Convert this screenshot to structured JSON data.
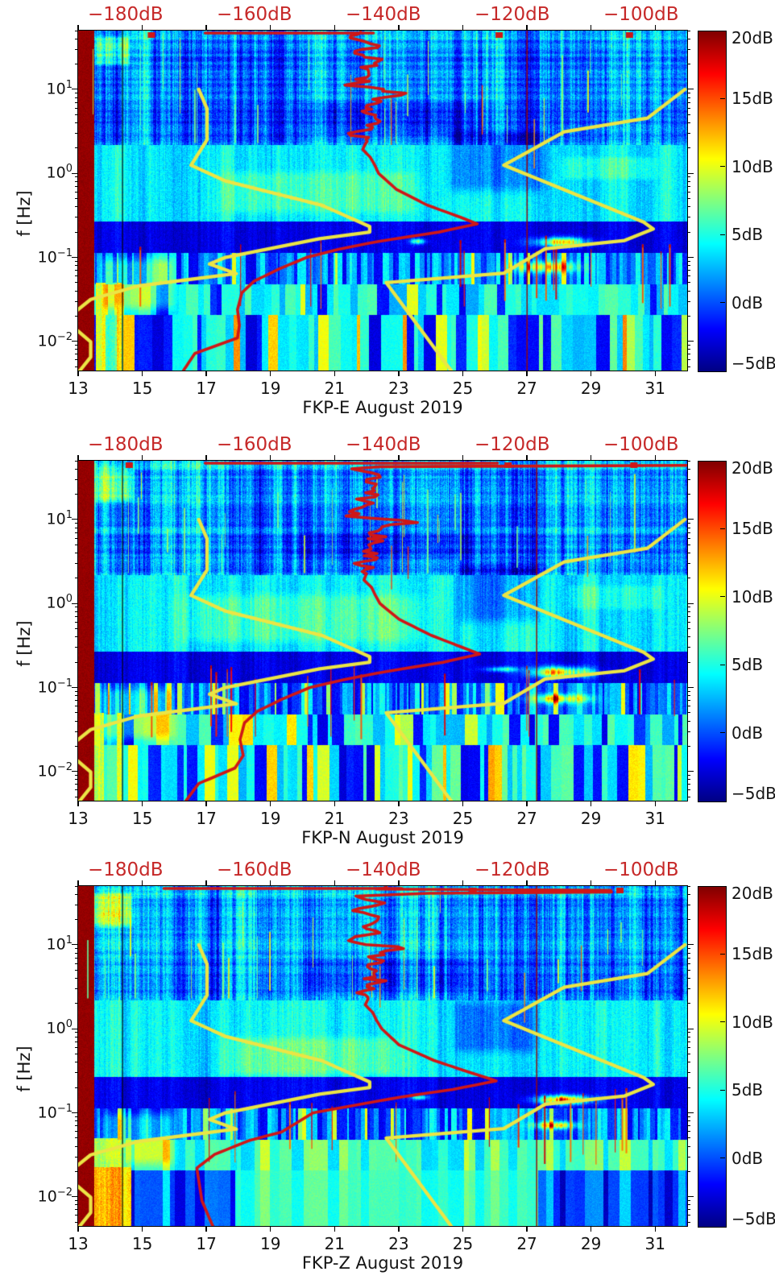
{
  "chart_data": {
    "type": "heatmap",
    "layout": "three stacked spectrogram panels (seismic power relative to noise model), jet colormap, with Peterson noise-model and median PSD overlay curves",
    "x_axis": {
      "ticks": [
        13,
        15,
        17,
        19,
        21,
        23,
        25,
        27,
        29,
        31
      ],
      "range_days": [
        13,
        32
      ]
    },
    "y_axis": {
      "label": "f [Hz]",
      "scale": "log",
      "range_hz": [
        0.0045,
        50
      ],
      "tick_exponents": [
        1,
        0,
        -1,
        -2
      ]
    },
    "top_axis": {
      "labels": [
        "-180dB",
        "-160dB",
        "-140dB",
        "-120dB",
        "-100dB"
      ],
      "values": [
        -180,
        -160,
        -140,
        -120,
        -100
      ],
      "color": "#c62828",
      "unit": "dB PSD scale for overlay curves"
    },
    "colorbar": {
      "labels": [
        "20dB",
        "15dB",
        "10dB",
        "5dB",
        "0dB",
        "-5dB"
      ],
      "values": [
        20,
        15,
        10,
        5,
        0,
        -5
      ],
      "range": [
        -5,
        20
      ],
      "colormap": "jet"
    },
    "noise_models": {
      "color": "#ebe545",
      "nlnm_freq_db": [
        [
          10,
          -168.0
        ],
        [
          5.882,
          -166.7
        ],
        [
          2.5,
          -166.7
        ],
        [
          1.25,
          -169.2
        ],
        [
          0.8065,
          -163.7
        ],
        [
          0.4167,
          -148.6
        ],
        [
          0.2326,
          -141.1
        ],
        [
          0.2,
          -141.1
        ],
        [
          0.1667,
          -149.0
        ],
        [
          0.1,
          -163.8
        ],
        [
          0.0833,
          -166.3
        ],
        [
          0.0641,
          -162.1
        ],
        [
          0.0457,
          -177.5
        ],
        [
          0.0316,
          -185.0
        ],
        [
          0.0222,
          -187.5
        ],
        [
          0.0143,
          -187.5
        ],
        [
          0.0099,
          -185.0
        ],
        [
          0.0065,
          -185.0
        ],
        [
          0.0045,
          -186.7
        ]
      ],
      "nhnm_freq_db": [
        [
          10,
          -91.5
        ],
        [
          4.545,
          -97.4
        ],
        [
          3.125,
          -110.5
        ],
        [
          1.25,
          -120.0
        ],
        [
          0.2632,
          -98.0
        ],
        [
          0.2174,
          -96.5
        ],
        [
          0.1587,
          -101.0
        ],
        [
          0.1266,
          -113.5
        ],
        [
          0.0649,
          -120.0
        ],
        [
          0.05,
          -138.5
        ],
        [
          0.0045,
          -128.3
        ]
      ]
    },
    "median_color": "#cf1717",
    "panels": [
      {
        "id": "FKP-E",
        "xlabel": "FKP-E August 2019",
        "median_freq_db": [
          [
            48,
            -142
          ],
          [
            39,
            -143.2
          ],
          [
            33,
            -140.3
          ],
          [
            27,
            -142.9
          ],
          [
            21.5,
            -139.7
          ],
          [
            17.3,
            -142.2
          ],
          [
            13.9,
            -141
          ],
          [
            11.2,
            -143.8
          ],
          [
            9,
            -135.3
          ],
          [
            7.2,
            -141
          ],
          [
            5.8,
            -139.7
          ],
          [
            4.65,
            -142.2
          ],
          [
            3.73,
            -140.3
          ],
          [
            3,
            -142.2
          ],
          [
            2.4,
            -141.6
          ],
          [
            1.93,
            -142.2
          ],
          [
            1.55,
            -141
          ],
          [
            1.25,
            -140.3
          ],
          [
            1,
            -139.7
          ],
          [
            0.645,
            -136.9
          ],
          [
            0.42,
            -132.1
          ],
          [
            0.3,
            -126.8
          ],
          [
            0.25,
            -124.2
          ],
          [
            0.2,
            -130.2
          ],
          [
            0.155,
            -139.7
          ],
          [
            0.125,
            -146
          ],
          [
            0.1,
            -151
          ],
          [
            0.072,
            -155.5
          ],
          [
            0.052,
            -159.3
          ],
          [
            0.038,
            -161.2
          ],
          [
            0.024,
            -161.9
          ],
          [
            0.0155,
            -161.6
          ],
          [
            0.011,
            -161.9
          ],
          [
            0.0072,
            -168.6
          ],
          [
            0.0045,
            -170.4
          ]
        ],
        "top_clip_db": [
          [
            -167,
            -140.5
          ]
        ],
        "top_dots_db": [
          -175.5,
          -120.8,
          -100.3
        ],
        "features": {
          "seed": 11,
          "left_saturated_band_days": [
            13,
            13.5
          ],
          "black_line_day": 14.38,
          "red_line_day": 27.0,
          "blobs": [
            {
              "days": [
                26.95,
                29.2
              ],
              "freq": [
                0.127,
                0.185
              ],
              "peak": 19
            },
            {
              "days": [
                26.3,
                28.9
              ],
              "freq": [
                0.062,
                0.097
              ],
              "peak": 14
            },
            {
              "days": [
                23.25,
                23.95
              ],
              "freq": [
                0.14,
                0.175
              ],
              "peak": 11
            }
          ],
          "clouds": [
            {
              "days": [
                16.8,
                24.2
              ],
              "freq": [
                0.3,
                1.2
              ],
              "dv": 1.9
            },
            {
              "days": [
                24.3,
                27.8
              ],
              "freq": [
                0.5,
                4
              ],
              "dv": -3.0
            },
            {
              "days": [
                27.8,
                31.3
              ],
              "freq": [
                0.8,
                1.7
              ],
              "dv": 1.8
            },
            {
              "days": [
                13.4,
                14.7
              ],
              "freq": [
                18,
                46
              ],
              "dv": 5.5
            },
            {
              "days": [
                19.5,
                26.5
              ],
              "freq": [
                2.6,
                8
              ],
              "dv": -1.8
            },
            {
              "days": [
                13.5,
                16.2
              ],
              "freq": [
                0.021,
                0.115
              ],
              "dv": 3.5
            }
          ],
          "yellow_columns": [
            {
              "days": [
                13.55,
                13.85
              ],
              "freq": [
                0.0045,
                0.05
              ],
              "value": 10.5
            },
            {
              "days": [
                13.85,
                14.2
              ],
              "freq": [
                0.0045,
                0.05
              ],
              "value": 5.5
            },
            {
              "days": [
                14.2,
                14.34
              ],
              "freq": [
                0.0045,
                0.05
              ],
              "value": 10
            }
          ],
          "band_overrides": []
        }
      },
      {
        "id": "FKP-N",
        "xlabel": "FKP-N August 2019",
        "median_freq_db": [
          [
            48,
            -90
          ],
          [
            44,
            -91
          ],
          [
            42.5,
            -139
          ],
          [
            40,
            -143
          ],
          [
            34,
            -139.8
          ],
          [
            28,
            -143
          ],
          [
            22,
            -140
          ],
          [
            17.5,
            -142.5
          ],
          [
            14,
            -140.5
          ],
          [
            11,
            -144
          ],
          [
            9.2,
            -134.5
          ],
          [
            7.3,
            -141.5
          ],
          [
            5.9,
            -139.5
          ],
          [
            4.7,
            -142
          ],
          [
            3.7,
            -140
          ],
          [
            3,
            -142
          ],
          [
            2.4,
            -141.5
          ],
          [
            1.9,
            -142
          ],
          [
            1.55,
            -140.8
          ],
          [
            1.25,
            -140.2
          ],
          [
            1,
            -139.5
          ],
          [
            0.65,
            -136.5
          ],
          [
            0.42,
            -131.5
          ],
          [
            0.3,
            -126.5
          ],
          [
            0.25,
            -123.8
          ],
          [
            0.2,
            -129.5
          ],
          [
            0.155,
            -138.5
          ],
          [
            0.125,
            -145
          ],
          [
            0.1,
            -150.5
          ],
          [
            0.072,
            -155
          ],
          [
            0.052,
            -158.8
          ],
          [
            0.038,
            -160.8
          ],
          [
            0.024,
            -161.5
          ],
          [
            0.0155,
            -161
          ],
          [
            0.011,
            -162.3
          ],
          [
            0.0072,
            -168
          ],
          [
            0.0045,
            -170
          ]
        ],
        "top_clip_db": [
          [
            -167,
            -121
          ]
        ],
        "top_dots_db": [
          -179,
          -119.4,
          -99.6
        ],
        "features": {
          "seed": 23,
          "left_saturated_band_days": [
            13,
            13.5
          ],
          "black_line_day": 14.38,
          "red_line_day": 27.3,
          "blobs": [
            {
              "days": [
                26.9,
                29.3
              ],
              "freq": [
                0.124,
                0.19
              ],
              "peak": 19.5
            },
            {
              "days": [
                26.9,
                29.2
              ],
              "freq": [
                0.062,
                0.089
              ],
              "peak": 14
            },
            {
              "days": [
                25.4,
                26.9
              ],
              "freq": [
                0.15,
                0.185
              ],
              "peak": 9
            }
          ],
          "clouds": [
            {
              "days": [
                15.5,
                24.5
              ],
              "freq": [
                0.3,
                1.5
              ],
              "dv": 2.0
            },
            {
              "days": [
                24.6,
                27.7
              ],
              "freq": [
                0.5,
                3.5
              ],
              "dv": -2.8
            },
            {
              "days": [
                13.4,
                14.8
              ],
              "freq": [
                15,
                45
              ],
              "dv": 5
            },
            {
              "days": [
                19,
                26
              ],
              "freq": [
                3,
                9
              ],
              "dv": -1.6
            },
            {
              "days": [
                13.5,
                16.2
              ],
              "freq": [
                0.021,
                0.115
              ],
              "dv": 3.5
            },
            {
              "days": [
                28,
                31.5
              ],
              "freq": [
                0.8,
                1.8
              ],
              "dv": 1.5
            }
          ],
          "yellow_columns": [
            {
              "days": [
                13.5,
                13.8
              ],
              "freq": [
                0.0045,
                0.05
              ],
              "value": 10
            },
            {
              "days": [
                14.2,
                14.34
              ],
              "freq": [
                0.0045,
                0.05
              ],
              "value": 9.5
            }
          ],
          "band_overrides": []
        }
      },
      {
        "id": "FKP-Z",
        "xlabel": "FKP-Z August 2019",
        "median_freq_db": [
          [
            48,
            -139
          ],
          [
            46,
            -141
          ],
          [
            44.5,
            -104
          ],
          [
            42.5,
            -104
          ],
          [
            41,
            -133
          ],
          [
            38,
            -142
          ],
          [
            33,
            -139.5
          ],
          [
            27,
            -142.5
          ],
          [
            21.5,
            -139.3
          ],
          [
            17.3,
            -142
          ],
          [
            13.9,
            -140.7
          ],
          [
            11.2,
            -143.5
          ],
          [
            9,
            -136
          ],
          [
            7.2,
            -140.7
          ],
          [
            5.8,
            -139.3
          ],
          [
            4.65,
            -141.8
          ],
          [
            3.73,
            -139.8
          ],
          [
            3,
            -141.8
          ],
          [
            2.4,
            -141.2
          ],
          [
            1.93,
            -141.8
          ],
          [
            1.55,
            -140.6
          ],
          [
            1.25,
            -140
          ],
          [
            1,
            -139.2
          ],
          [
            0.645,
            -136.5
          ],
          [
            0.42,
            -131
          ],
          [
            0.3,
            -125.2
          ],
          [
            0.24,
            -121.2
          ],
          [
            0.19,
            -128
          ],
          [
            0.155,
            -136
          ],
          [
            0.125,
            -143
          ],
          [
            0.1,
            -150
          ],
          [
            0.059,
            -155
          ],
          [
            0.047,
            -160
          ],
          [
            0.032,
            -165.5
          ],
          [
            0.022,
            -168.3
          ],
          [
            0.009,
            -167.5
          ],
          [
            0.0045,
            -165.8
          ]
        ],
        "top_clip_db": [
          [
            -173.5,
            -136
          ]
        ],
        "top_dots_db": [
          -124.9,
          -101.8
        ],
        "features": {
          "seed": 37,
          "left_saturated_band_days": [
            13,
            13.5
          ],
          "black_line_day": 14.38,
          "red_line_day": 27.3,
          "blobs": [
            {
              "days": [
                26.9,
                29.3
              ],
              "freq": [
                0.121,
                0.172
              ],
              "peak": 19
            },
            {
              "days": [
                26.9,
                28.8
              ],
              "freq": [
                0.062,
                0.083
              ],
              "peak": 13
            },
            {
              "days": [
                23.3,
                24
              ],
              "freq": [
                0.14,
                0.17
              ],
              "peak": 9
            }
          ],
          "clouds": [
            {
              "days": [
                17,
                23.5
              ],
              "freq": [
                0.25,
                0.9
              ],
              "dv": 2.2
            },
            {
              "days": [
                24.5,
                27.5
              ],
              "freq": [
                0.45,
                2.5
              ],
              "dv": -2.8
            },
            {
              "days": [
                13.3,
                14.8
              ],
              "freq": [
                15,
                45
              ],
              "dv": 6
            },
            {
              "days": [
                19.5,
                26
              ],
              "freq": [
                2.6,
                8
              ],
              "dv": -1.8
            },
            {
              "days": [
                13.5,
                16.2
              ],
              "freq": [
                0.021,
                0.115
              ],
              "dv": 3.5
            }
          ],
          "yellow_columns": [
            {
              "days": [
                13.5,
                14.65
              ],
              "freq": [
                0.0045,
                0.023
              ],
              "value": 12
            },
            {
              "days": [
                13.5,
                14.65
              ],
              "freq": [
                0.023,
                0.05
              ],
              "value": 8
            }
          ],
          "band_overrides": [
            {
              "days": [
                17.9,
                27.35
              ],
              "freq": [
                0.0045,
                0.021
              ],
              "base": 5.0,
              "amp": 0.5
            },
            {
              "days": [
                14.65,
                17.9
              ],
              "freq": [
                0.0045,
                0.021
              ],
              "base": -1.8,
              "amp": 1.2
            },
            {
              "days": [
                27.35,
                32
              ],
              "freq": [
                0.0045,
                0.021
              ],
              "base": -2.6,
              "amp": 1.2
            },
            {
              "days": [
                13,
                32
              ],
              "freq": [
                0.021,
                0.048
              ],
              "base": 4.2,
              "amp": 1.0
            }
          ]
        }
      }
    ]
  }
}
